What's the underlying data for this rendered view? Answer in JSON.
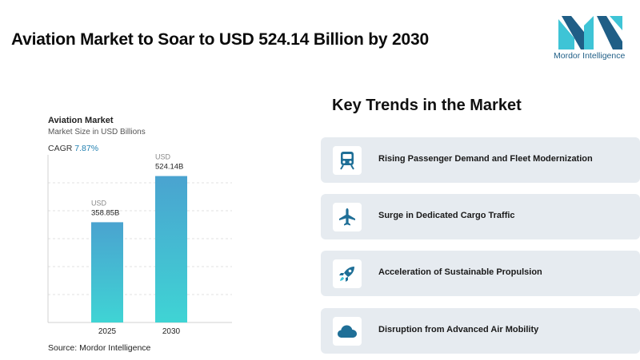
{
  "header": {
    "title": "Aviation Market to Soar to USD 524.14 Billion by 2030"
  },
  "logo": {
    "text": "Mordor Intelligence",
    "icon": "mordor-logo-icon",
    "colors": [
      "#1f5e86",
      "#3ec4d6"
    ]
  },
  "chart_panel": {
    "cagr_label": "CAGR",
    "cagr_value": "7.87%",
    "source": "Source: Mordor Intelligence"
  },
  "chart_data": {
    "type": "bar",
    "title": "Aviation Market",
    "subtitle": "Market Size in USD Billions",
    "categories": [
      "2025",
      "2030"
    ],
    "values": [
      358.85,
      524.14
    ],
    "value_unit_label": "USD",
    "data_labels": [
      "358.85B",
      "524.14B"
    ],
    "ylim": [
      0,
      600
    ],
    "grid": true,
    "bar_gradient": [
      "#4aa3d0",
      "#3fd4d4"
    ]
  },
  "trends": {
    "title": "Key Trends in the Market",
    "items": [
      {
        "label": "Rising Passenger Demand and Fleet Modernization",
        "icon": "train-icon"
      },
      {
        "label": "Surge in Dedicated Cargo Traffic",
        "icon": "airplane-icon"
      },
      {
        "label": "Acceleration of Sustainable Propulsion",
        "icon": "rocket-icon"
      },
      {
        "label": "Disruption from Advanced Air Mobility",
        "icon": "cloud-icon"
      }
    ],
    "icon_color": "#1f6f97"
  }
}
